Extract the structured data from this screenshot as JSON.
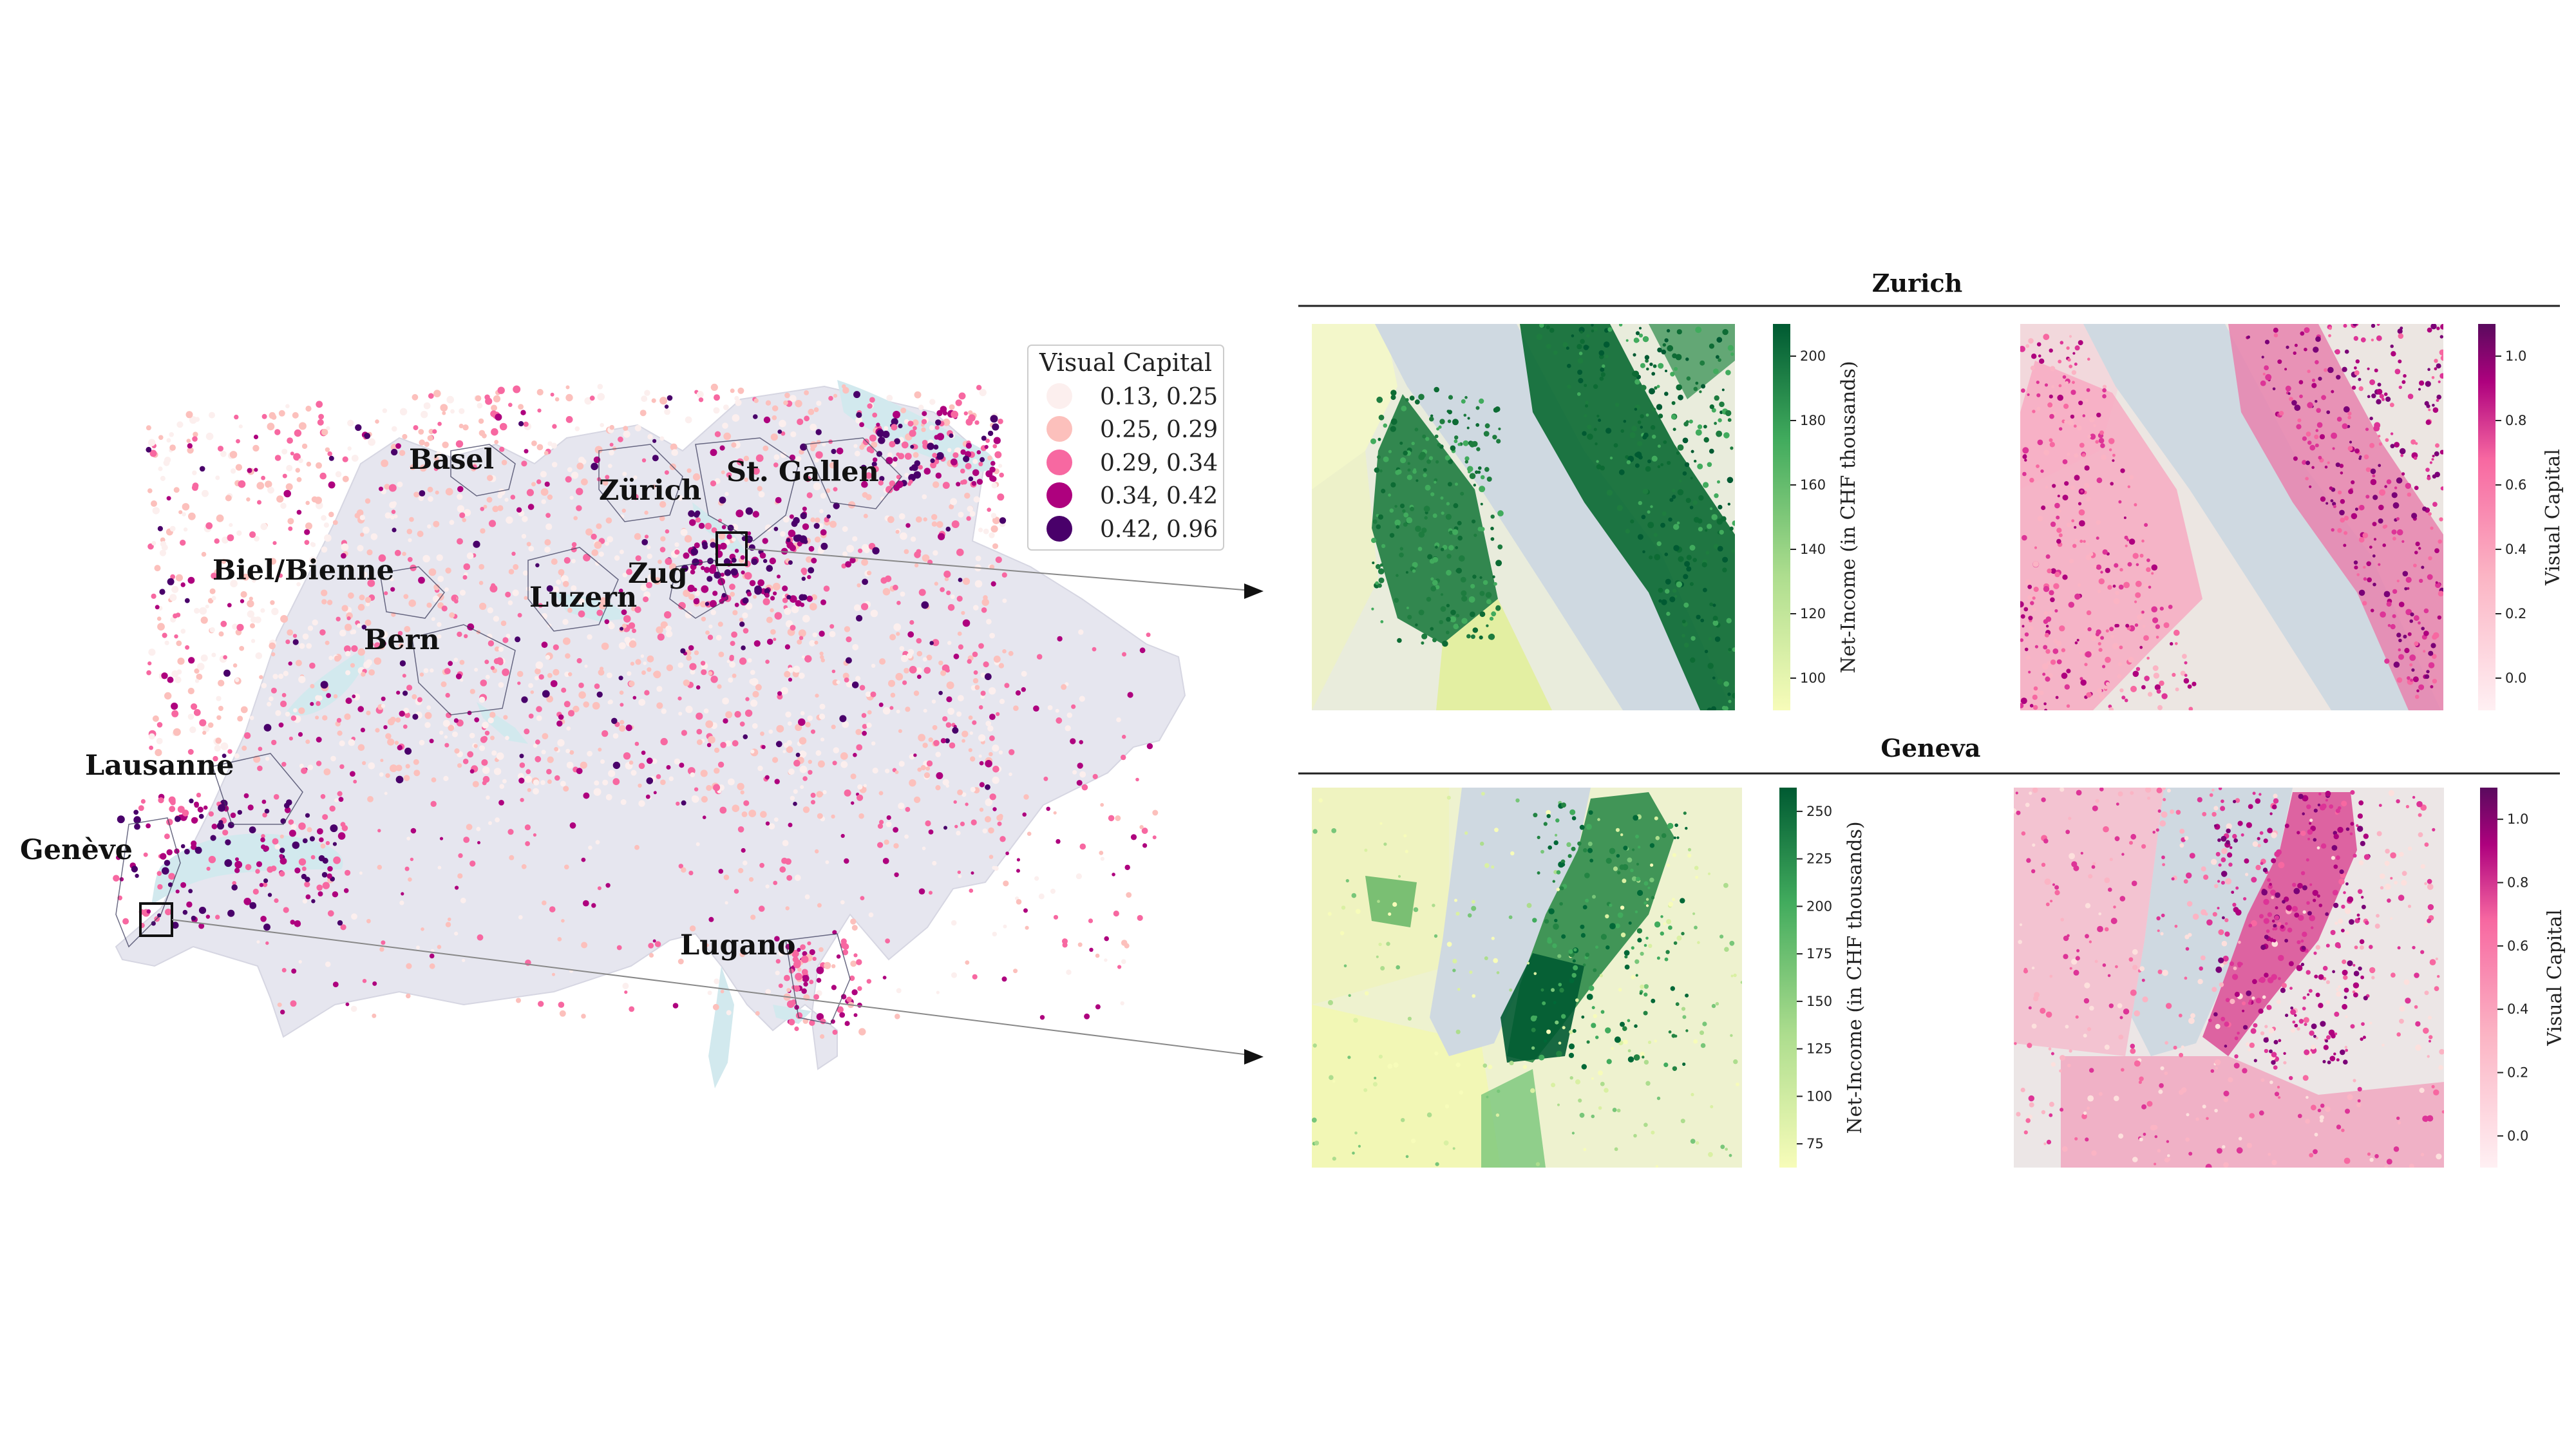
{
  "colors": {
    "swiss_fill": "#e6e6ef",
    "lake": "#d2e9ee",
    "vc_classes": [
      "#fcefee",
      "#fcc0bc",
      "#f768a1",
      "#ae017e",
      "#49006a"
    ],
    "green_low": "#f7fcb9",
    "green_high": "#005a32",
    "pink_low": "#fff0f3",
    "pink_high": "#5a0a5e"
  },
  "main_map": {
    "cities": [
      "Basel",
      "Zürich",
      "St. Gallen",
      "Biel/Bienne",
      "Zug",
      "Luzern",
      "Bern",
      "Lausanne",
      "Genève",
      "Lugano"
    ],
    "legend": {
      "title": "Visual Capital",
      "classes": [
        "0.13, 0.25",
        "0.25, 0.29",
        "0.29, 0.34",
        "0.34, 0.42",
        "0.42, 0.96"
      ]
    }
  },
  "panels": {
    "zurich": {
      "title": "Zurich",
      "income_label": "Net-Income (in CHF thousands)",
      "income_ticks": [
        "100",
        "120",
        "140",
        "160",
        "180",
        "200"
      ],
      "vc_label": "Visual Capital",
      "vc_ticks": [
        "0.0",
        "0.2",
        "0.4",
        "0.6",
        "0.8",
        "1.0"
      ]
    },
    "geneva": {
      "title": "Geneva",
      "income_label": "Net-Income (in CHF thousands)",
      "income_ticks": [
        "75",
        "100",
        "125",
        "150",
        "175",
        "200",
        "225",
        "250"
      ],
      "vc_label": "Visual Capital",
      "vc_ticks": [
        "0.0",
        "0.2",
        "0.4",
        "0.6",
        "0.8",
        "1.0"
      ]
    }
  }
}
